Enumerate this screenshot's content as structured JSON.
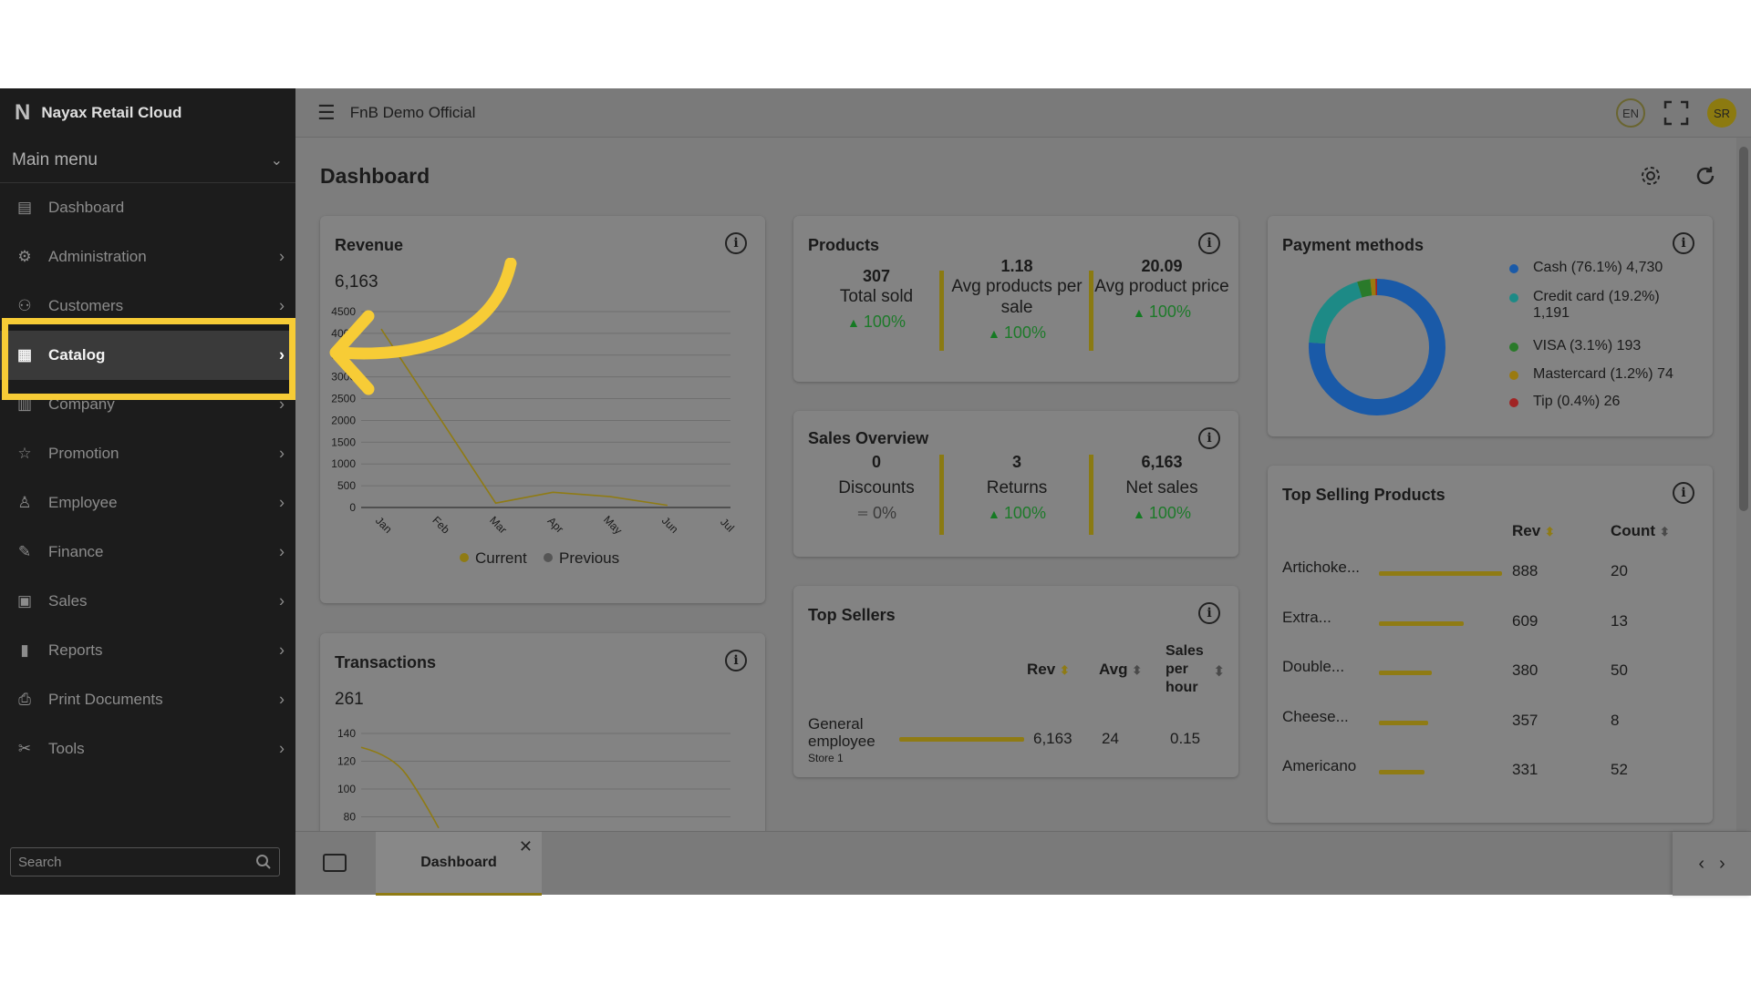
{
  "app": {
    "brand": "Nayax Retail Cloud",
    "brand_logo": "N",
    "workspace": "FnB Demo Official",
    "language": "EN",
    "user_initials": "SR"
  },
  "sidebar": {
    "menu_title": "Main menu",
    "items": [
      {
        "label": "Dashboard",
        "icon": "dashboard-icon"
      },
      {
        "label": "Administration",
        "icon": "gear-icon"
      },
      {
        "label": "Customers",
        "icon": "users-icon"
      },
      {
        "label": "Catalog",
        "icon": "grid-icon"
      },
      {
        "label": "Company",
        "icon": "building-icon"
      },
      {
        "label": "Promotion",
        "icon": "star-icon"
      },
      {
        "label": "Employee",
        "icon": "person-icon"
      },
      {
        "label": "Finance",
        "icon": "finance-icon"
      },
      {
        "label": "Sales",
        "icon": "receipt-icon"
      },
      {
        "label": "Reports",
        "icon": "chart-icon"
      },
      {
        "label": "Print Documents",
        "icon": "printer-icon"
      },
      {
        "label": "Tools",
        "icon": "tools-icon"
      }
    ],
    "active": "Catalog",
    "search_placeholder": "Search"
  },
  "page": {
    "title": "Dashboard"
  },
  "revenue": {
    "title": "Revenue",
    "total": "6,163",
    "legend": [
      "Current",
      "Previous"
    ],
    "chart_data": {
      "type": "line",
      "categories": [
        "Jan",
        "Feb",
        "Mar",
        "Apr",
        "May",
        "Jun",
        "Jul"
      ],
      "yticks": [
        "0",
        "500",
        "1000",
        "1500",
        "2000",
        "2500",
        "3000",
        "3500",
        "4000",
        "4500"
      ],
      "ylim": [
        0,
        4500
      ],
      "series": [
        {
          "name": "Current",
          "values": [
            4100,
            2100,
            100,
            350,
            250,
            50,
            null
          ],
          "color": "#8f7b14"
        }
      ]
    }
  },
  "transactions": {
    "title": "Transactions",
    "total": "261",
    "chart_data": {
      "type": "line",
      "yticks": [
        "80",
        "100",
        "120",
        "140"
      ],
      "ylim": [
        80,
        140
      ],
      "series": [
        {
          "name": "Current",
          "values": [
            130,
            110,
            72
          ]
        }
      ]
    }
  },
  "products": {
    "title": "Products",
    "metrics": [
      {
        "value": "307",
        "label": "Total sold",
        "change": "100%"
      },
      {
        "value": "1.18",
        "label": "Avg products per sale",
        "change": "100%"
      },
      {
        "value": "20.09",
        "label": "Avg product price",
        "change": "100%"
      }
    ]
  },
  "sales_overview": {
    "title": "Sales Overview",
    "metrics": [
      {
        "value": "0",
        "label": "Discounts",
        "change": "0%"
      },
      {
        "value": "3",
        "label": "Returns",
        "change": "100%"
      },
      {
        "value": "6,163",
        "label": "Net sales",
        "change": "100%"
      }
    ]
  },
  "top_sellers": {
    "title": "Top Sellers",
    "headers": [
      "Rev",
      "Avg",
      "Sales per hour"
    ],
    "rows": [
      {
        "name": "General employee",
        "store": "Store 1",
        "rev": "6,163",
        "avg": "24",
        "sph": "0.15",
        "share": 1.0
      }
    ]
  },
  "payment_methods": {
    "title": "Payment methods",
    "chart_data": {
      "type": "pie",
      "slices": [
        {
          "label": "Cash (76.1%) 4,730",
          "value": 76.1,
          "color": "#1a5aa8"
        },
        {
          "label": "Credit card (19.2%) 1,191",
          "value": 19.2,
          "color": "#1d8a86"
        },
        {
          "label": "VISA (3.1%) 193",
          "value": 3.1,
          "color": "#2a7a2a"
        },
        {
          "label": "Mastercard (1.2%) 74",
          "value": 1.2,
          "color": "#9a7a10"
        },
        {
          "label": "Tip (0.4%) 26",
          "value": 0.4,
          "color": "#a02424"
        }
      ]
    }
  },
  "top_selling": {
    "title": "Top Selling Products",
    "headers": [
      "Rev",
      "Count"
    ],
    "rows": [
      {
        "name": "Artichoke...",
        "rev": "888",
        "count": "20",
        "share": 1.0
      },
      {
        "name": "Extra...",
        "rev": "609",
        "count": "13",
        "share": 0.686
      },
      {
        "name": "Double...",
        "rev": "380",
        "count": "50",
        "share": 0.428
      },
      {
        "name": "Cheese...",
        "rev": "357",
        "count": "8",
        "share": 0.402
      },
      {
        "name": "Americano",
        "rev": "331",
        "count": "52",
        "share": 0.373
      }
    ]
  },
  "tabs": [
    {
      "label": "Dashboard",
      "active": true
    }
  ]
}
